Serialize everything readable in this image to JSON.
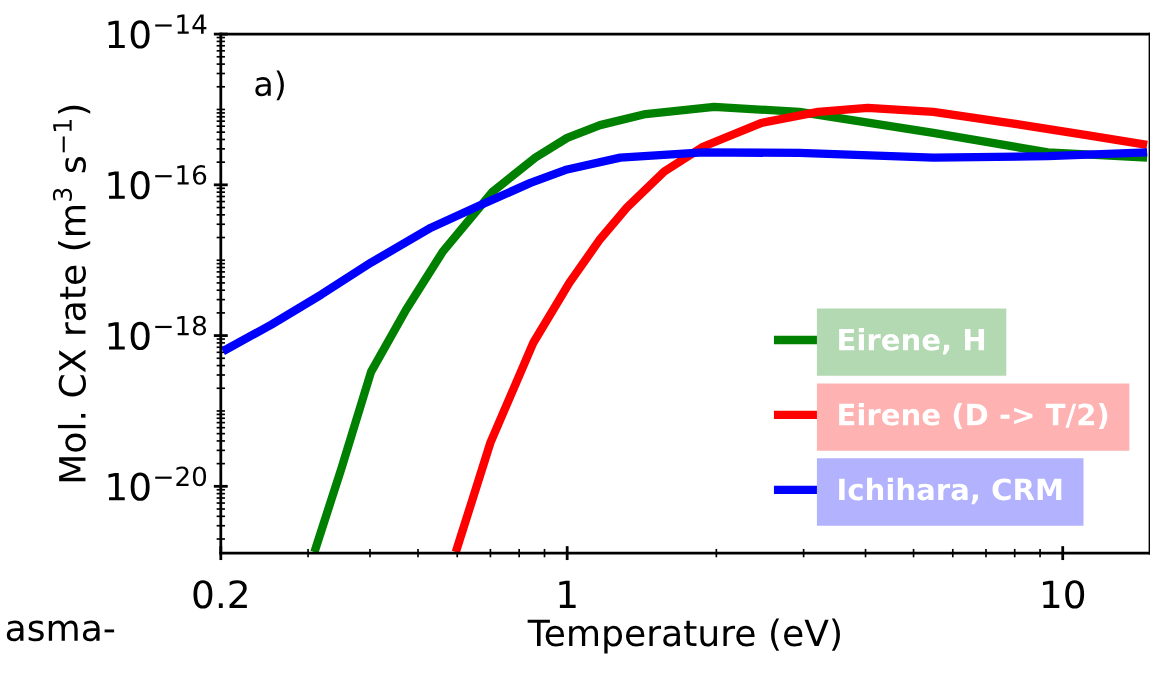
{
  "chart_data": {
    "type": "line",
    "xlabel": "Temperature (eV)",
    "ylabel": "Mol. CX rate (m$^{3}$ s$^{−1}$)",
    "log": "xy",
    "xlim": [
      0.2,
      15
    ],
    "xticks": [
      0.2,
      1,
      10
    ],
    "ylim": [
      1.3e-21,
      1e-14
    ],
    "yticks": [
      {
        "value": 1e-20,
        "label": "10$^{−20}$"
      },
      {
        "value": 1e-18,
        "label": "10$^{−18}$"
      },
      {
        "value": 1e-16,
        "label": "10$^{−16}$"
      },
      {
        "value": 1e-14,
        "label": "10$^{−14}$"
      }
    ],
    "grid": false,
    "legend": "bottom right",
    "marker": "none",
    "line_style": "solid",
    "annotations": [
      "a)",
      "asma-"
    ],
    "series": [
      {
        "name": "Eirene, H",
        "color": "#008000",
        "x": [
          0.309,
          0.35,
          0.402,
          0.473,
          0.561,
          0.707,
          0.863,
          1,
          1.165,
          1.44,
          1.98,
          2.94,
          5.48,
          9.33,
          14.8
        ],
        "values": [
          1.34e-21,
          1.7e-20,
          3.3e-19,
          2.2e-18,
          1.3e-17,
          8.1e-17,
          2.3e-16,
          4.2e-16,
          6.2e-16,
          8.7e-16,
          1.08e-15,
          9.3e-16,
          4.9e-16,
          2.7e-16,
          2.3e-16
        ]
      },
      {
        "name": "Eirene (D -> T/2)",
        "color": "#ff0000",
        "x": [
          0.596,
          0.644,
          0.7,
          0.855,
          1.01,
          1.165,
          1.32,
          1.57,
          1.88,
          2.46,
          3.21,
          4.04,
          5.48,
          7.83,
          11.1,
          14.8
        ],
        "values": [
          1.34e-21,
          6.7e-21,
          3.8e-20,
          8.1e-19,
          5e-18,
          1.9e-17,
          5e-17,
          1.5e-16,
          3.2e-16,
          6.6e-16,
          9.3e-16,
          1.05e-15,
          9.3e-16,
          6.6e-16,
          4.6e-16,
          3.4e-16
        ]
      },
      {
        "name": "Ichihara, CRM",
        "color": "#0000ff",
        "x": [
          0.202,
          0.253,
          0.319,
          0.402,
          0.531,
          0.669,
          0.843,
          1,
          1.28,
          1.88,
          2.94,
          5.48,
          9.33,
          14.8
        ],
        "values": [
          6.2e-19,
          1.4e-18,
          3.5e-18,
          9.3e-18,
          2.7e-17,
          5.4e-17,
          1.06e-16,
          1.6e-16,
          2.3e-16,
          2.7e-16,
          2.65e-16,
          2.3e-16,
          2.4e-16,
          2.7e-16
        ]
      }
    ]
  }
}
